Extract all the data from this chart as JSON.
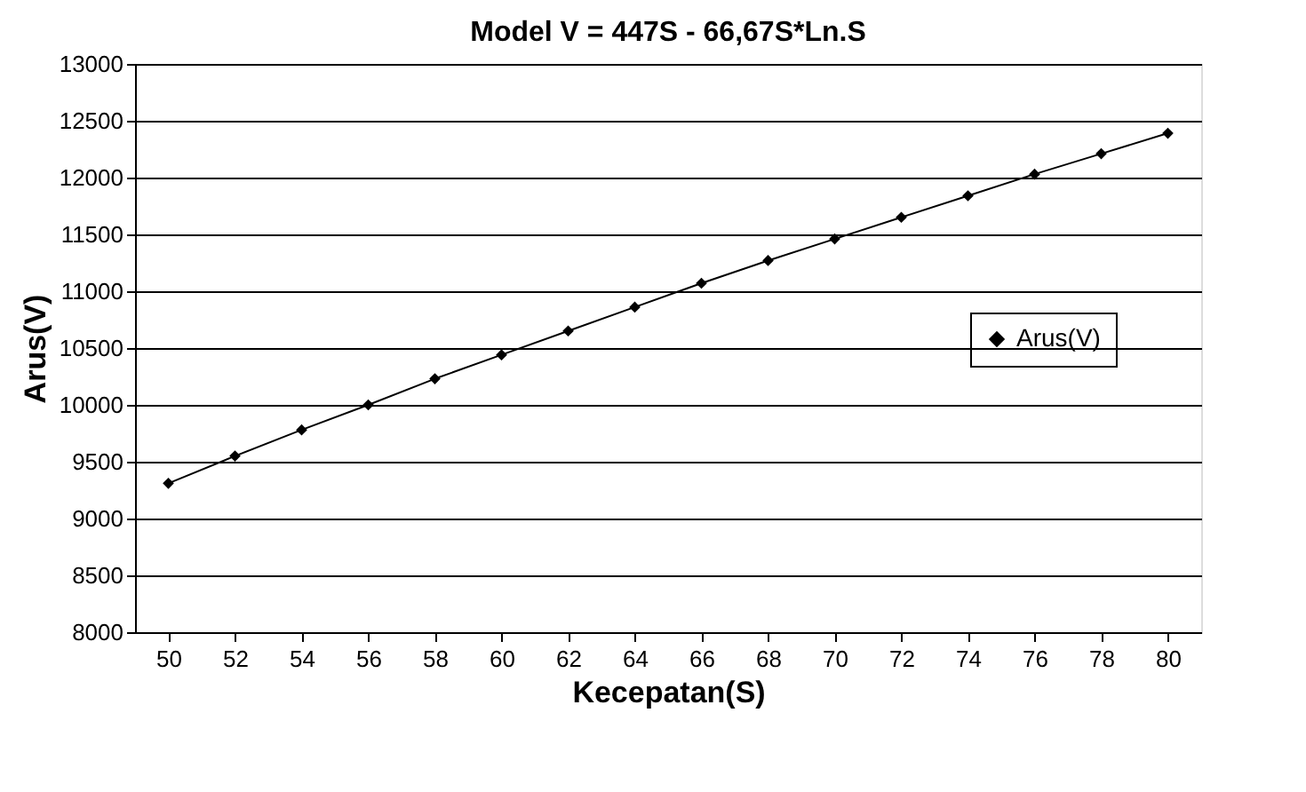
{
  "chart_data": {
    "type": "line",
    "title": "Model V = 447S - 66,67S*Ln.S",
    "xlabel": "Kecepatan(S)",
    "ylabel": "Arus(V)",
    "categories": [
      "50",
      "52",
      "54",
      "56",
      "58",
      "60",
      "62",
      "64",
      "66",
      "68",
      "70",
      "72",
      "74",
      "76",
      "78",
      "80"
    ],
    "series": [
      {
        "name": "Arus(V)",
        "color": "#000000",
        "values": [
          9310,
          9550,
          9780,
          10000,
          10230,
          10440,
          10650,
          10860,
          11070,
          11270,
          11460,
          11650,
          11840,
          12030,
          12210,
          12390
        ]
      }
    ],
    "ylim": [
      8000,
      13000
    ],
    "yticks": [
      8000,
      8500,
      9000,
      9500,
      10000,
      10500,
      11000,
      11500,
      12000,
      12500,
      13000
    ],
    "grid": "y",
    "legend": "right",
    "marker": "diamond",
    "line_style": "solid"
  }
}
